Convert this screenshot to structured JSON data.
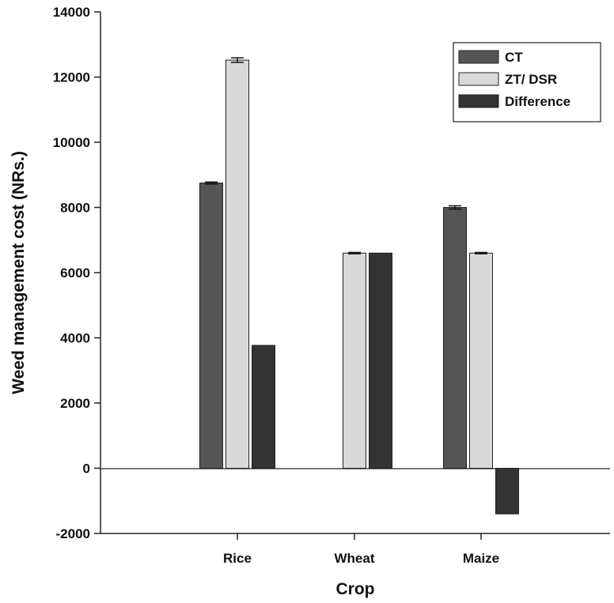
{
  "chart_data": {
    "type": "bar",
    "title": "",
    "xlabel": "Crop",
    "ylabel": "Weed management cost (NRs.)",
    "categories": [
      "Rice",
      "Wheat",
      "Maize"
    ],
    "ylim": [
      -2000,
      14000
    ],
    "yticks": [
      -2000,
      0,
      2000,
      4000,
      6000,
      8000,
      10000,
      12000,
      14000
    ],
    "grid": false,
    "legend_position": "top-right",
    "series": [
      {
        "name": "CT",
        "color": "#555555",
        "values": [
          8750,
          null,
          8000
        ],
        "errors": [
          30,
          null,
          50
        ]
      },
      {
        "name": "ZT/ DSR",
        "color": "#d9d9d9",
        "values": [
          12520,
          6600,
          6600
        ],
        "errors": [
          70,
          20,
          20
        ]
      },
      {
        "name": "Difference",
        "color": "#333333",
        "values": [
          3770,
          6600,
          -1400
        ],
        "errors": [
          null,
          null,
          null
        ]
      }
    ]
  }
}
